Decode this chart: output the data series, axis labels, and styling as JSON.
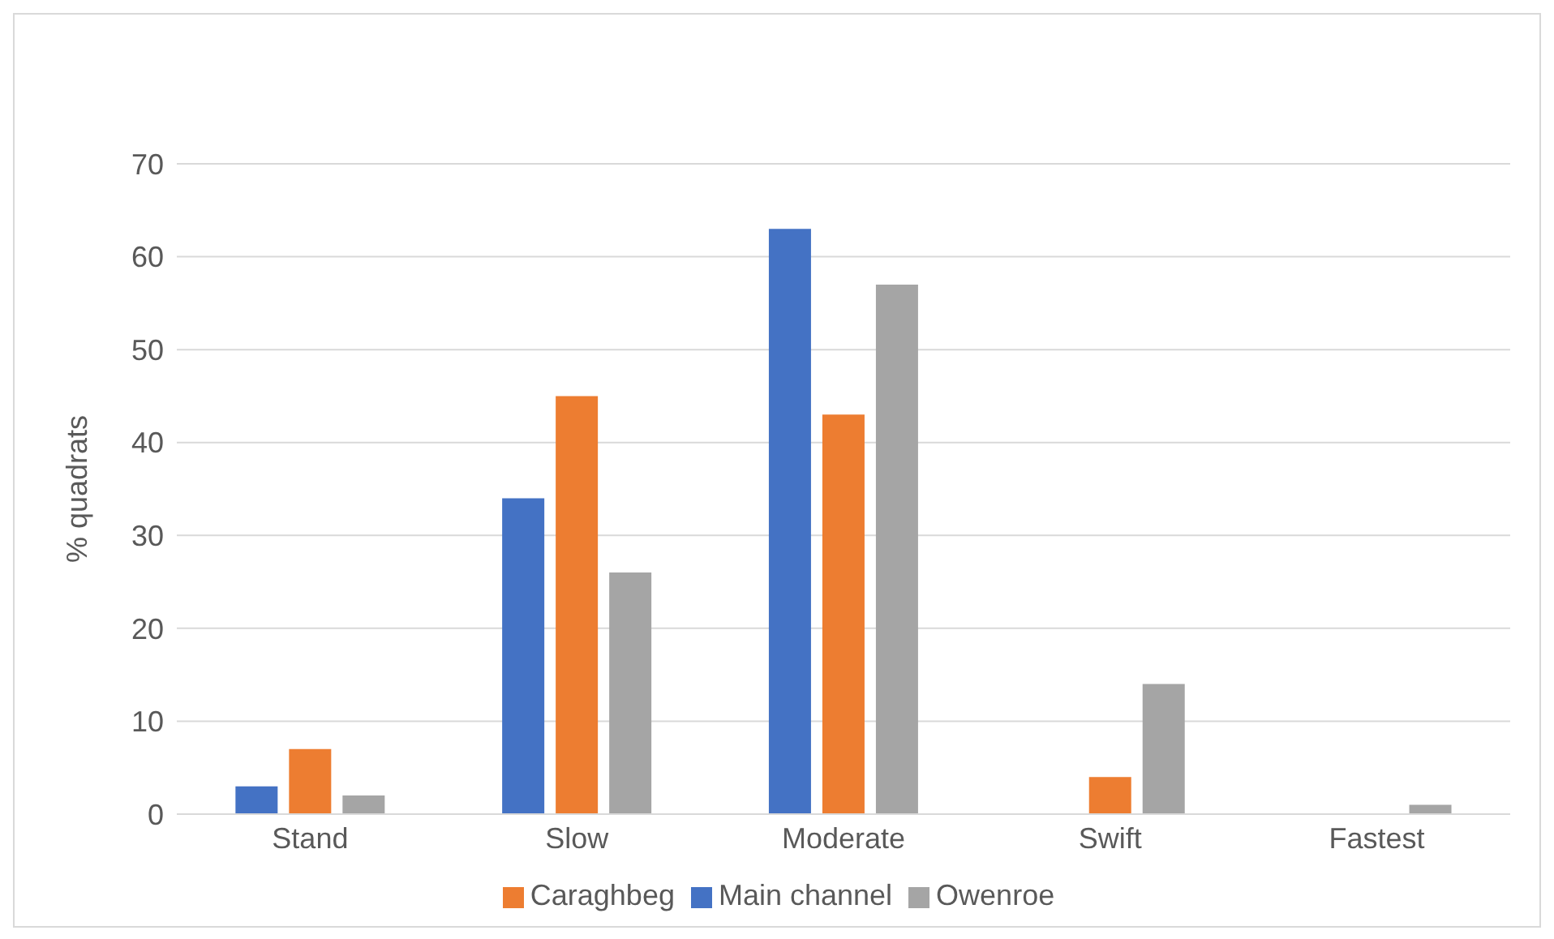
{
  "chart_data": {
    "type": "bar",
    "ylabel": "% quadrats",
    "categories": [
      "Stand",
      "Slow",
      "Moderate",
      "Swift",
      "Fastest"
    ],
    "series": [
      {
        "name": "Main channel",
        "color": "#4472c4",
        "values": [
          3,
          34,
          63,
          0,
          0
        ]
      },
      {
        "name": "Caraghbeg",
        "color": "#ed7d31",
        "values": [
          7,
          45,
          43,
          4,
          0
        ]
      },
      {
        "name": "Owenroe",
        "color": "#a5a5a5",
        "values": [
          2,
          26,
          57,
          14,
          1
        ]
      }
    ],
    "ylim": [
      0,
      70
    ],
    "yticks": [
      0,
      10,
      20,
      30,
      40,
      50,
      60,
      70
    ],
    "grid": "y",
    "legend": "bottom"
  }
}
